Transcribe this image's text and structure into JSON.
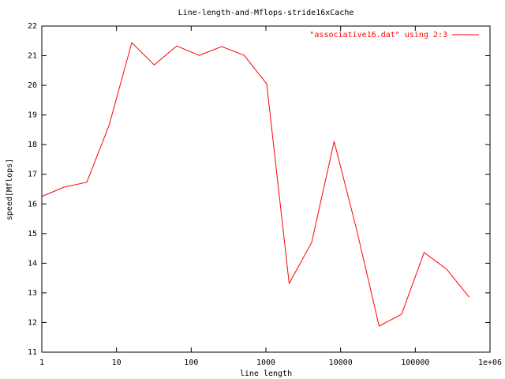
{
  "chart_data": {
    "type": "line",
    "title": "Line-length-and-Mflops-stride16xCache",
    "x_label": "line length",
    "y_label": "speed[Mflops]",
    "xscale": "log",
    "legend_position": "upper right",
    "x": [
      1,
      2,
      4,
      8,
      16,
      32,
      64,
      128,
      256,
      512,
      1024,
      2048,
      4096,
      8192,
      16384,
      32768,
      65536,
      131072,
      262144,
      524288
    ],
    "series": [
      {
        "name": "\"associative16.dat\" using 2:3",
        "color": "#ff0000",
        "values": [
          16.25,
          16.57,
          16.73,
          18.67,
          21.44,
          20.69,
          21.33,
          21.01,
          21.31,
          21.01,
          20.05,
          13.32,
          14.7,
          18.11,
          15.13,
          11.88,
          12.28,
          14.36,
          13.8,
          12.86
        ]
      }
    ],
    "xlim": [
      1,
      1000000
    ],
    "xticks": [
      1,
      10,
      100,
      1000,
      10000,
      100000,
      {
        "value": 1000000,
        "label": "1e+06"
      }
    ],
    "ylim": [
      11,
      22
    ],
    "yticks": [
      11,
      12,
      13,
      14,
      15,
      16,
      17,
      18,
      19,
      20,
      21,
      22
    ]
  }
}
